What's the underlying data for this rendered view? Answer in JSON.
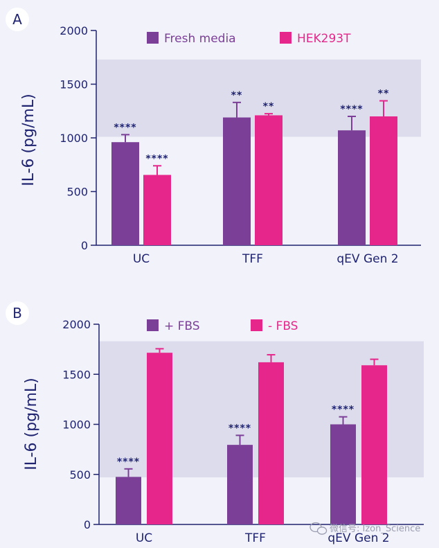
{
  "colors": {
    "purple": "#7b3f98",
    "pink": "#e6268a",
    "axis": "#1f2370",
    "band": "#dcdcec",
    "background": "#f2f3fa",
    "panel_circle": "#ffffff"
  },
  "watermark": {
    "text": "微信号: Izon_Science",
    "icon": "wechat-icon"
  },
  "chart_data": [
    {
      "type": "bar",
      "panel": "A",
      "ylabel": "IL-6 (pg/mL)",
      "xlabel": "",
      "ylim": [
        0,
        2000
      ],
      "yticks": [
        0,
        500,
        1000,
        1500,
        2000
      ],
      "categories": [
        "UC",
        "TFF",
        "qEV Gen 2"
      ],
      "band": [
        1010,
        1730
      ],
      "legend_position": "top",
      "series": [
        {
          "name": "Fresh media",
          "color": "#7b3f98",
          "values": [
            960,
            1190,
            1070
          ],
          "errors": [
            70,
            140,
            130
          ],
          "significance": [
            "****",
            "**",
            "****"
          ]
        },
        {
          "name": "HEK293T",
          "color": "#e6268a",
          "values": [
            655,
            1210,
            1200
          ],
          "errors": [
            85,
            15,
            145
          ],
          "significance": [
            "****",
            "**",
            "**"
          ]
        }
      ]
    },
    {
      "type": "bar",
      "panel": "B",
      "ylabel": "IL-6 (pg/mL)",
      "xlabel": "",
      "ylim": [
        0,
        2000
      ],
      "yticks": [
        0,
        500,
        1000,
        1500,
        2000
      ],
      "categories": [
        "UC",
        "TFF",
        "qEV Gen 2"
      ],
      "band": [
        470,
        1830
      ],
      "legend_position": "top",
      "series": [
        {
          "name": "+ FBS",
          "color": "#7b3f98",
          "values": [
            475,
            795,
            1000
          ],
          "errors": [
            80,
            95,
            75
          ],
          "significance": [
            "****",
            "****",
            "****"
          ]
        },
        {
          "name": "- FBS",
          "color": "#e6268a",
          "values": [
            1715,
            1620,
            1590
          ],
          "errors": [
            40,
            75,
            60
          ],
          "significance": [
            "",
            "",
            ""
          ]
        }
      ]
    }
  ]
}
